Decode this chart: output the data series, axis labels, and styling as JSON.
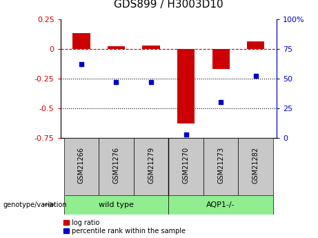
{
  "title": "GDS899 / H3003D10",
  "samples": [
    "GSM21266",
    "GSM21276",
    "GSM21279",
    "GSM21270",
    "GSM21273",
    "GSM21282"
  ],
  "log_ratio": [
    0.13,
    0.02,
    0.03,
    -0.63,
    -0.17,
    0.06
  ],
  "percentile_rank": [
    62,
    47,
    47,
    3,
    30,
    52
  ],
  "groups": [
    {
      "label": "wild type",
      "indices": [
        0,
        1,
        2
      ],
      "color": "#90EE90"
    },
    {
      "label": "AQP1-/-",
      "indices": [
        3,
        4,
        5
      ],
      "color": "#90EE90"
    }
  ],
  "group_boundary": 3,
  "bar_color": "#cc0000",
  "dot_color": "#0000cc",
  "left_ylim": [
    -0.75,
    0.25
  ],
  "right_ylim": [
    0,
    100
  ],
  "left_yticks": [
    -0.75,
    -0.5,
    -0.25,
    0,
    0.25
  ],
  "right_yticks": [
    0,
    25,
    50,
    75,
    100
  ],
  "left_ytick_labels": [
    "-0.75",
    "-0.5",
    "-0.25",
    "0",
    "0.25"
  ],
  "right_ytick_labels": [
    "0",
    "25",
    "50",
    "75",
    "100%"
  ],
  "hline_y": 0.0,
  "dotted_lines": [
    -0.25,
    -0.5
  ],
  "genotype_label": "genotype/variation",
  "legend_bar_label": "log ratio",
  "legend_dot_label": "percentile rank within the sample",
  "group_box_color": "#c8c8c8",
  "title_fontsize": 11,
  "tick_fontsize": 8,
  "label_fontsize": 7,
  "group_fontsize": 8
}
